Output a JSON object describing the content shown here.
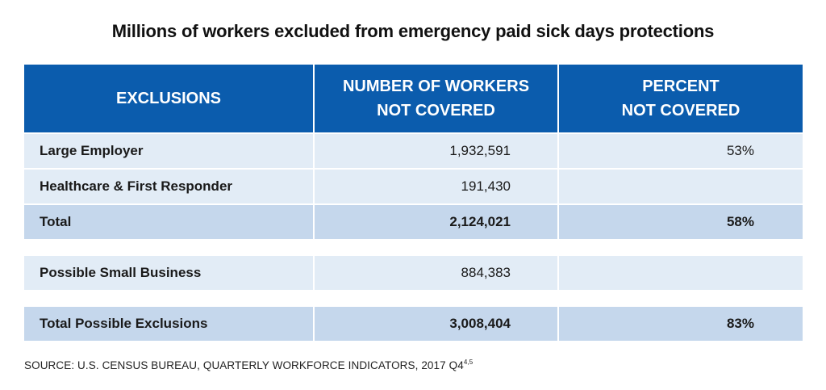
{
  "chart_data": {
    "type": "table",
    "title": "Millions of workers excluded from emergency paid sick days protections",
    "columns": [
      "EXCLUSIONS",
      "NUMBER OF WORKERS NOT COVERED",
      "PERCENT NOT COVERED"
    ],
    "header": {
      "col1": "EXCLUSIONS",
      "col2_line1": "NUMBER OF WORKERS",
      "col2_line2": "NOT COVERED",
      "col3_line1": "PERCENT",
      "col3_line2": "NOT COVERED"
    },
    "rows": [
      {
        "label": "Large Employer",
        "workers": "1,932,591",
        "percent": "53%"
      },
      {
        "label": "Healthcare & First Responder",
        "workers": "191,430",
        "percent": ""
      },
      {
        "label": "Total",
        "workers": "2,124,021",
        "percent": "58%"
      },
      {
        "label": "Possible Small Business",
        "workers": "884,383",
        "percent": ""
      },
      {
        "label": "Total Possible Exclusions",
        "workers": "3,008,404",
        "percent": "83%"
      }
    ],
    "source": "SOURCE: U.S. CENSUS BUREAU, QUARTERLY WORKFORCE INDICATORS, 2017 Q4",
    "source_superscript": "4,5"
  },
  "colors": {
    "header_bg": "#0b5cad",
    "row_light": "#e2ecf6",
    "row_total": "#c5d7ec"
  }
}
